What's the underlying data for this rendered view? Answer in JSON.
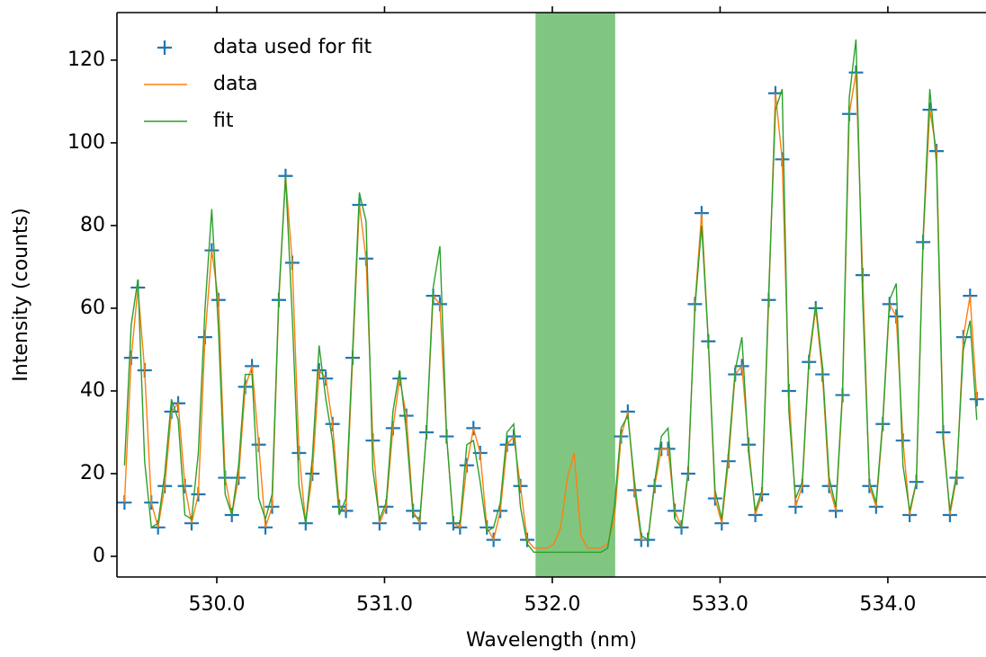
{
  "chart_data": {
    "type": "line",
    "xlabel": "Wavelength (nm)",
    "ylabel": "Intensity (counts)",
    "xlim": [
      529.405,
      534.585
    ],
    "ylim": [
      -5,
      131.5
    ],
    "xticks": [
      {
        "value": 530,
        "label": "530.0"
      },
      {
        "value": 531,
        "label": "531.0"
      },
      {
        "value": 532,
        "label": "532.0"
      },
      {
        "value": 533,
        "label": "533.0"
      },
      {
        "value": 534,
        "label": "534.0"
      }
    ],
    "yticks": [
      0,
      20,
      40,
      60,
      80,
      100,
      120
    ],
    "legend": "upper left",
    "span": {
      "range": [
        531.9,
        532.375
      ],
      "color": "#2ca02c"
    },
    "x": [
      529.45,
      529.49,
      529.53,
      529.57,
      529.61,
      529.65,
      529.69,
      529.73,
      529.77,
      529.81,
      529.85,
      529.89,
      529.93,
      529.97,
      530.01,
      530.05,
      530.09,
      530.13,
      530.17,
      530.21,
      530.25,
      530.29,
      530.33,
      530.37,
      530.41,
      530.45,
      530.49,
      530.53,
      530.57,
      530.61,
      530.65,
      530.69,
      530.73,
      530.77,
      530.81,
      530.85,
      530.89,
      530.93,
      530.97,
      531.01,
      531.05,
      531.09,
      531.13,
      531.17,
      531.21,
      531.25,
      531.29,
      531.33,
      531.37,
      531.41,
      531.45,
      531.49,
      531.53,
      531.57,
      531.61,
      531.65,
      531.69,
      531.73,
      531.77,
      531.81,
      531.85,
      531.89,
      531.93,
      531.97,
      532.01,
      532.05,
      532.09,
      532.13,
      532.17,
      532.21,
      532.25,
      532.29,
      532.33,
      532.37,
      532.41,
      532.45,
      532.49,
      532.53,
      532.57,
      532.61,
      532.65,
      532.69,
      532.73,
      532.77,
      532.81,
      532.85,
      532.89,
      532.93,
      532.97,
      533.01,
      533.05,
      533.09,
      533.13,
      533.17,
      533.21,
      533.25,
      533.29,
      533.33,
      533.37,
      533.41,
      533.45,
      533.49,
      533.53,
      533.57,
      533.61,
      533.65,
      533.69,
      533.73,
      533.77,
      533.81,
      533.85,
      533.89,
      533.93,
      533.97,
      534.01,
      534.05,
      534.09,
      534.13,
      534.17,
      534.21,
      534.25,
      534.29,
      534.33,
      534.37,
      534.41,
      534.45,
      534.49,
      534.53
    ],
    "series": [
      {
        "name": "data used for fit",
        "kind": "scatter",
        "color": "#1f77b4",
        "values": [
          13,
          48,
          65,
          45,
          13,
          7,
          17,
          35,
          37,
          17,
          8,
          15,
          53,
          74,
          62,
          19,
          10,
          19,
          41,
          46,
          27,
          7,
          12,
          62,
          92,
          71,
          25,
          8,
          20,
          45,
          43,
          32,
          12,
          11,
          48,
          85,
          72,
          28,
          8,
          12,
          31,
          43,
          34,
          11,
          8,
          30,
          63,
          61,
          29,
          8,
          7,
          22,
          31,
          25,
          7,
          4,
          11,
          27,
          29,
          17,
          4,
          null,
          null,
          null,
          null,
          null,
          null,
          null,
          null,
          null,
          null,
          null,
          null,
          null,
          29,
          35,
          16,
          4,
          4,
          17,
          26,
          26,
          11,
          7,
          20,
          61,
          83,
          52,
          14,
          8,
          23,
          44,
          46,
          27,
          10,
          15,
          62,
          112,
          96,
          40,
          12,
          17,
          47,
          60,
          44,
          17,
          11,
          39,
          107,
          117,
          68,
          17,
          12,
          32,
          61,
          58,
          28,
          10,
          18,
          76,
          108,
          98,
          30,
          10,
          19,
          53,
          63,
          38
        ]
      },
      {
        "name": "data",
        "kind": "line",
        "color": "#ff7f0e",
        "values": [
          13,
          48,
          65,
          45,
          13,
          7,
          17,
          35,
          37,
          17,
          8,
          15,
          53,
          74,
          62,
          19,
          10,
          19,
          41,
          46,
          27,
          7,
          12,
          62,
          92,
          71,
          25,
          8,
          20,
          45,
          43,
          32,
          12,
          11,
          48,
          85,
          72,
          28,
          8,
          12,
          31,
          43,
          34,
          11,
          8,
          30,
          63,
          61,
          29,
          8,
          7,
          22,
          31,
          25,
          7,
          4,
          11,
          27,
          29,
          17,
          4,
          2,
          2,
          2,
          3,
          7,
          19,
          25,
          5,
          2,
          2,
          2,
          3,
          9,
          29,
          35,
          16,
          4,
          4,
          17,
          26,
          26,
          11,
          7,
          20,
          61,
          83,
          52,
          14,
          8,
          23,
          44,
          46,
          27,
          10,
          15,
          62,
          112,
          96,
          40,
          12,
          17,
          47,
          60,
          44,
          17,
          11,
          39,
          107,
          117,
          68,
          17,
          12,
          32,
          61,
          58,
          28,
          10,
          18,
          76,
          108,
          98,
          30,
          10,
          19,
          53,
          63,
          38
        ]
      },
      {
        "name": "fit",
        "kind": "line",
        "color": "#2ca02c",
        "values": [
          22,
          56,
          67,
          23,
          7,
          8,
          20,
          38,
          33,
          10,
          9,
          25,
          60,
          84,
          55,
          15,
          10,
          22,
          44,
          44,
          14,
          9,
          15,
          63,
          92,
          58,
          17,
          8,
          24,
          51,
          38,
          28,
          10,
          14,
          50,
          88,
          81,
          21,
          9,
          13,
          35,
          45,
          30,
          10,
          9,
          30,
          65,
          75,
          29,
          8,
          8,
          27,
          28,
          18,
          6,
          7,
          13,
          30,
          32,
          12,
          3,
          1,
          1,
          1,
          1,
          1,
          1,
          1,
          1,
          1,
          1,
          1,
          2,
          12,
          31,
          34,
          18,
          5,
          4,
          18,
          29,
          31,
          9,
          7,
          21,
          60,
          80,
          52,
          16,
          9,
          25,
          45,
          53,
          25,
          11,
          16,
          64,
          108,
          113,
          35,
          14,
          18,
          48,
          61,
          46,
          19,
          12,
          40,
          111,
          125,
          62,
          18,
          13,
          33,
          62,
          66,
          22,
          11,
          18,
          77,
          113,
          95,
          28,
          11,
          20,
          50,
          57,
          33
        ]
      }
    ]
  }
}
